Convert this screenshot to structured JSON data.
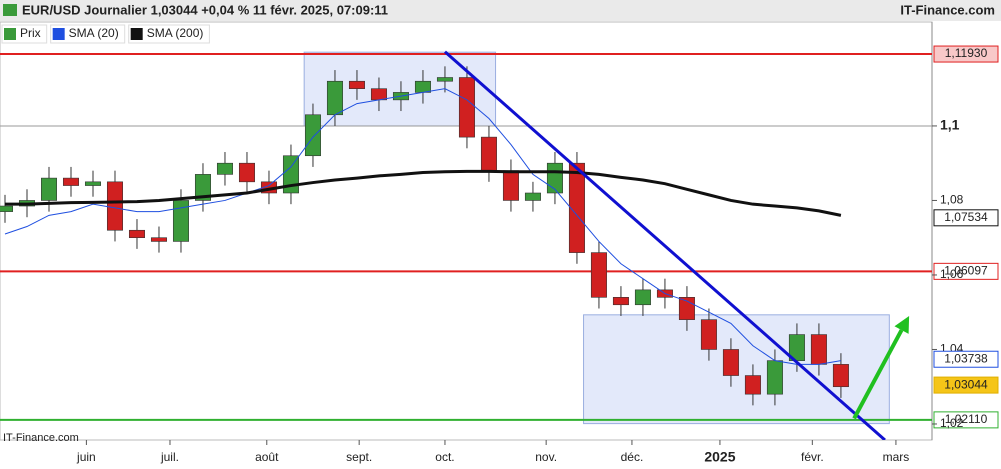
{
  "chart_data": {
    "type": "candlestick",
    "title": "EUR/USD Journalier 1,03044 +0,04 % 11 févr. 2025, 07:09:11",
    "source": "IT-Finance.com",
    "legend": [
      "Prix",
      "SMA (20)",
      "SMA (200)"
    ],
    "up_color": "#3a9a3a",
    "down_color": "#d02020",
    "x": [
      0,
      1,
      2,
      3,
      4,
      5,
      6,
      7,
      8,
      9,
      10,
      11,
      12,
      13,
      14,
      15,
      16,
      17,
      18,
      19,
      20,
      21,
      22,
      23,
      24,
      25,
      26,
      27,
      28,
      29,
      30,
      31,
      32,
      33,
      34,
      35,
      36,
      37,
      38
    ],
    "open": [
      1.077,
      1.0785,
      1.08,
      1.086,
      1.084,
      1.085,
      1.072,
      1.07,
      1.069,
      1.08,
      1.087,
      1.09,
      1.085,
      1.082,
      1.092,
      1.103,
      1.112,
      1.11,
      1.107,
      1.109,
      1.112,
      1.113,
      1.097,
      1.088,
      1.08,
      1.082,
      1.09,
      1.066,
      1.054,
      1.052,
      1.056,
      1.054,
      1.048,
      1.04,
      1.033,
      1.028,
      1.037,
      1.044,
      1.036
    ],
    "high": [
      1.0815,
      1.083,
      1.089,
      1.089,
      1.088,
      1.088,
      1.075,
      1.073,
      1.083,
      1.09,
      1.093,
      1.093,
      1.088,
      1.095,
      1.106,
      1.115,
      1.115,
      1.113,
      1.112,
      1.115,
      1.116,
      1.116,
      1.1,
      1.091,
      1.085,
      1.093,
      1.093,
      1.069,
      1.057,
      1.059,
      1.059,
      1.057,
      1.051,
      1.043,
      1.036,
      1.04,
      1.047,
      1.047,
      1.039
    ],
    "low": [
      1.074,
      1.0755,
      1.077,
      1.081,
      1.081,
      1.069,
      1.067,
      1.066,
      1.066,
      1.077,
      1.084,
      1.082,
      1.079,
      1.079,
      1.089,
      1.1,
      1.107,
      1.104,
      1.104,
      1.106,
      1.109,
      1.094,
      1.085,
      1.077,
      1.077,
      1.079,
      1.063,
      1.051,
      1.049,
      1.049,
      1.051,
      1.045,
      1.037,
      1.03,
      1.025,
      1.025,
      1.034,
      1.033,
      1.027
    ],
    "close": [
      1.0785,
      1.08,
      1.086,
      1.084,
      1.085,
      1.072,
      1.07,
      1.069,
      1.08,
      1.087,
      1.09,
      1.085,
      1.082,
      1.092,
      1.103,
      1.112,
      1.11,
      1.107,
      1.109,
      1.112,
      1.113,
      1.097,
      1.088,
      1.08,
      1.082,
      1.09,
      1.066,
      1.054,
      1.052,
      1.056,
      1.054,
      1.048,
      1.04,
      1.033,
      1.028,
      1.037,
      1.044,
      1.036,
      1.03
    ],
    "series": [
      {
        "name": "SMA (20)",
        "color": "#1f4fe0",
        "values": [
          1.071,
          1.073,
          1.076,
          1.077,
          1.079,
          1.078,
          1.077,
          1.077,
          1.078,
          1.079,
          1.08,
          1.082,
          1.084,
          1.089,
          1.097,
          1.103,
          1.106,
          1.107,
          1.108,
          1.109,
          1.11,
          1.107,
          1.102,
          1.095,
          1.087,
          1.083,
          1.076,
          1.069,
          1.063,
          1.059,
          1.055,
          1.053,
          1.05,
          1.047,
          1.041,
          1.037,
          1.036,
          1.036,
          1.037
        ]
      },
      {
        "name": "SMA (200)",
        "color": "#111111",
        "values": [
          1.079,
          1.079,
          1.0792,
          1.0794,
          1.0795,
          1.0796,
          1.0797,
          1.08,
          1.0805,
          1.081,
          1.0815,
          1.082,
          1.083,
          1.084,
          1.0848,
          1.0855,
          1.086,
          1.0866,
          1.087,
          1.0875,
          1.0877,
          1.0878,
          1.0878,
          1.0877,
          1.0877,
          1.0877,
          1.0875,
          1.087,
          1.0862,
          1.0855,
          1.0845,
          1.083,
          1.0815,
          1.08,
          1.079,
          1.0785,
          1.078,
          1.0772,
          1.076
        ]
      }
    ],
    "xlim": [
      -0.227,
      42.14
    ],
    "xticks": [
      {
        "value": 3.7,
        "label": "juin"
      },
      {
        "value": 7.5,
        "label": "juil."
      },
      {
        "value": 11.9,
        "label": "août"
      },
      {
        "value": 16.1,
        "label": "sept."
      },
      {
        "value": 20,
        "label": "oct."
      },
      {
        "value": 24.6,
        "label": "nov."
      },
      {
        "value": 28.5,
        "label": "déc."
      },
      {
        "value": 32.5,
        "label": "2025"
      },
      {
        "value": 36.7,
        "label": "févr."
      },
      {
        "value": 40.5,
        "label": "mars"
      }
    ],
    "ylim": [
      1.0157,
      1.1279
    ],
    "yticks": [
      {
        "value": 1.1,
        "label": "1,1"
      },
      {
        "value": 1.08,
        "label": "1,08"
      },
      {
        "value": 1.06,
        "label": "1,06"
      },
      {
        "value": 1.04,
        "label": "1,04"
      },
      {
        "value": 1.02,
        "label": "1,02"
      }
    ],
    "levels": [
      {
        "value": 1.1193,
        "label": "1,11930",
        "color": "#e02020"
      },
      {
        "value": 1.1,
        "color": "#999999"
      },
      {
        "value": 1.06097,
        "label": "1,06097",
        "color": "#e02020"
      },
      {
        "value": 1.0211,
        "label": "1,02110",
        "color": "#30b030"
      }
    ],
    "markers": [
      {
        "value": 1.07534,
        "label": "1,07534",
        "color": "#111111"
      },
      {
        "value": 1.03738,
        "label": "1,03738",
        "color": "#1f4fe0"
      },
      {
        "value": 1.03044,
        "label": "1,03044",
        "color": "#e0b000"
      }
    ],
    "boxes": [
      {
        "x": [
          13.6,
          22.3
        ],
        "y": [
          1.1198,
          1.1
        ]
      },
      {
        "x": [
          26.3,
          40.2
        ],
        "y": [
          1.0493,
          1.0201
        ]
      }
    ],
    "trendline": {
      "x": [
        20,
        40
      ],
      "y": [
        1.1199,
        1.0157
      ],
      "color": "#1010d0"
    },
    "arrow": {
      "x": [
        38.6,
        41.1
      ],
      "y": [
        1.0215,
        1.049
      ],
      "color": "#20c020"
    }
  }
}
